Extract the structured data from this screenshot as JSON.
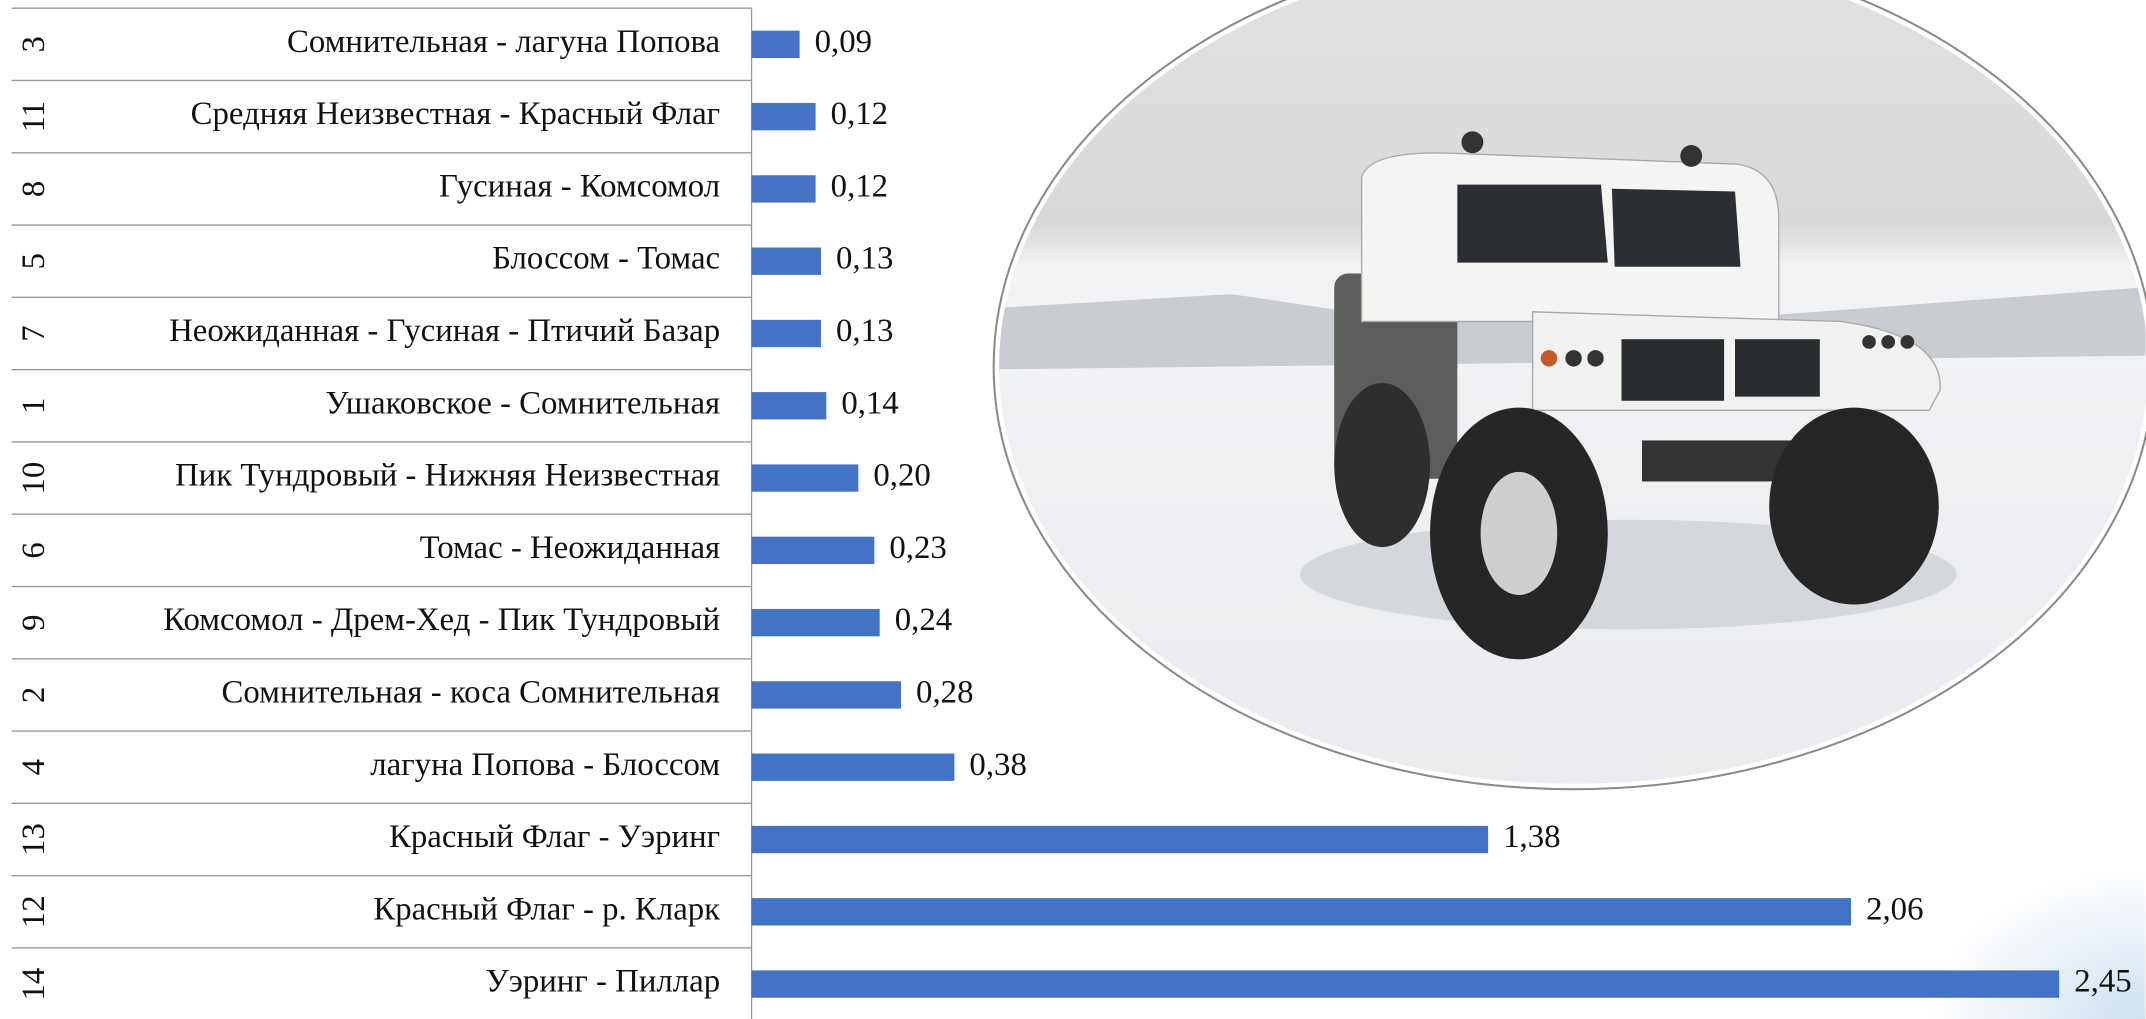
{
  "chart_data": {
    "type": "bar",
    "orientation": "horizontal",
    "category_numbers": [
      "3",
      "11",
      "8",
      "5",
      "7",
      "1",
      "10",
      "6",
      "9",
      "2",
      "4",
      "13",
      "12",
      "14"
    ],
    "categories": [
      "Сомнительная - лагуна Попова",
      "Средняя Неизвестная - Красный Флаг",
      "Гусиная - Комсомол",
      "Блоссом - Томас",
      "Неожиданная - Гусиная - Птичий Базар",
      "Ушаковское - Сомнительная",
      "Пик Тундровый - Нижняя Неизвестная",
      "Томас - Неожиданная",
      "Комсомол - Дрем-Хед - Пик Тундровый",
      "Сомнительная - коса Сомнительная",
      "лагуна Попова - Блоссом",
      "Красный Флаг - Уэринг",
      "Красный Флаг - р. Кларк",
      "Уэринг - Пиллар"
    ],
    "values": [
      0.09,
      0.12,
      0.12,
      0.13,
      0.13,
      0.14,
      0.2,
      0.23,
      0.24,
      0.28,
      0.38,
      1.38,
      2.06,
      2.45
    ],
    "value_labels": [
      "0,09",
      "0,12",
      "0,12",
      "0,13",
      "0,13",
      "0,14",
      "0,20",
      "0,23",
      "0,24",
      "0,28",
      "0,38",
      "1,38",
      "2,06",
      "2,45"
    ],
    "color": "#4472c4"
  }
}
